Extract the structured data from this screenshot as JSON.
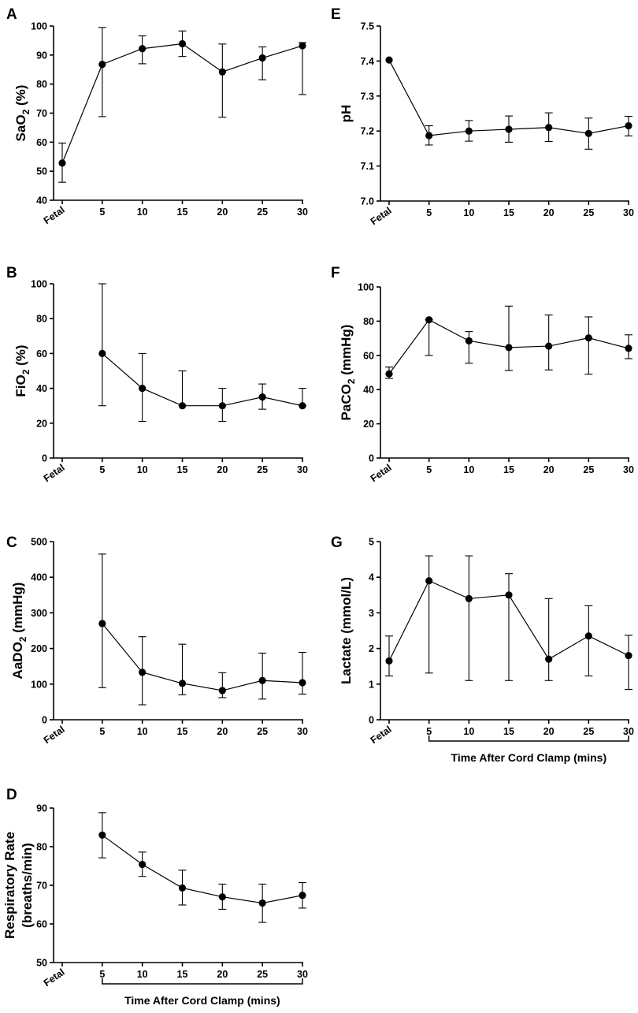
{
  "chart_data": [
    {
      "panel": "A",
      "type": "line",
      "categories": [
        "Fetal",
        "5",
        "10",
        "15",
        "20",
        "25",
        "30"
      ],
      "ylabel": "SaO",
      "ylabel_sub": "2",
      "ylabel_suffix": " (%)",
      "ylim": [
        40,
        100
      ],
      "yticks": [
        40,
        50,
        60,
        70,
        80,
        90,
        100
      ],
      "values": [
        52.8,
        86.8,
        92.2,
        93.9,
        84.2,
        89.0,
        93.2
      ],
      "err_low": [
        46.2,
        68.8,
        87.0,
        89.5,
        68.6,
        81.5,
        76.4
      ],
      "err_high": [
        59.7,
        99.5,
        96.6,
        98.3,
        93.8,
        92.8,
        94.3
      ],
      "bracket_label": ""
    },
    {
      "panel": "B",
      "type": "line",
      "categories": [
        "Fetal",
        "5",
        "10",
        "15",
        "20",
        "25",
        "30"
      ],
      "ylabel": "FiO",
      "ylabel_sub": "2",
      "ylabel_suffix": " (%)",
      "ylim": [
        0,
        100
      ],
      "yticks": [
        0,
        20,
        40,
        60,
        80,
        100
      ],
      "values": [
        null,
        60,
        40,
        30,
        30,
        35,
        30
      ],
      "err_low": [
        null,
        30,
        21,
        30,
        21,
        28,
        30
      ],
      "err_high": [
        null,
        100,
        60,
        50,
        40,
        42.5,
        40
      ],
      "bracket_label": ""
    },
    {
      "panel": "C",
      "type": "line",
      "categories": [
        "Fetal",
        "5",
        "10",
        "15",
        "20",
        "25",
        "30"
      ],
      "ylabel": "AaDO",
      "ylabel_sub": "2",
      "ylabel_suffix": " (mmHg)",
      "ylim": [
        0,
        500
      ],
      "yticks": [
        0,
        100,
        200,
        300,
        400,
        500
      ],
      "values": [
        null,
        270,
        133,
        102,
        82,
        110,
        104
      ],
      "err_low": [
        null,
        90,
        42,
        70,
        62,
        58,
        72
      ],
      "err_high": [
        null,
        465,
        233,
        212,
        132,
        187,
        189
      ],
      "bracket_label": ""
    },
    {
      "panel": "D",
      "type": "line",
      "categories": [
        "Fetal",
        "5",
        "10",
        "15",
        "20",
        "25",
        "30"
      ],
      "ylabel": "Respiratory Rate",
      "ylabel2": "(breaths/min)",
      "ylim": [
        50,
        90
      ],
      "yticks": [
        50,
        60,
        70,
        80,
        90
      ],
      "values": [
        null,
        83.0,
        75.4,
        69.3,
        67.0,
        65.4,
        67.4
      ],
      "err_low": [
        null,
        77.1,
        72.3,
        64.9,
        63.8,
        60.4,
        64.1
      ],
      "err_high": [
        null,
        88.8,
        78.6,
        73.9,
        70.3,
        70.3,
        70.7
      ],
      "bracket_label": "Time After Cord Clamp (mins)"
    },
    {
      "panel": "E",
      "type": "line",
      "categories": [
        "Fetal",
        "5",
        "10",
        "15",
        "20",
        "25",
        "30"
      ],
      "ylabel": "pH",
      "ylim": [
        7.0,
        7.5
      ],
      "yticks": [
        "7.0",
        "7.1",
        "7.2",
        "7.3",
        "7.4",
        "7.5"
      ],
      "values": [
        7.403,
        7.187,
        7.2,
        7.205,
        7.21,
        7.193,
        7.215
      ],
      "err_low": [
        null,
        7.16,
        7.171,
        7.168,
        7.17,
        7.148,
        7.186
      ],
      "err_high": [
        null,
        7.215,
        7.23,
        7.243,
        7.252,
        7.237,
        7.242
      ],
      "bracket_label": ""
    },
    {
      "panel": "F",
      "type": "line",
      "categories": [
        "Fetal",
        "5",
        "10",
        "15",
        "20",
        "25",
        "30"
      ],
      "ylabel": "PaCO",
      "ylabel_sub": "2",
      "ylabel_suffix": " (mmHg)",
      "ylim": [
        0,
        100
      ],
      "yticks": [
        0,
        20,
        40,
        60,
        80,
        100
      ],
      "values": [
        49.2,
        80.8,
        68.5,
        64.6,
        65.4,
        70.2,
        64.1
      ],
      "err_low": [
        46.5,
        60.0,
        55.4,
        51.2,
        51.5,
        49.0,
        58.1
      ],
      "err_high": [
        53.2,
        80.8,
        73.9,
        88.8,
        83.6,
        82.5,
        72.0
      ],
      "bracket_label": ""
    },
    {
      "panel": "G",
      "type": "line",
      "categories": [
        "Fetal",
        "5",
        "10",
        "15",
        "20",
        "25",
        "30"
      ],
      "ylabel": "Lactate (mmol/L)",
      "ylim": [
        0,
        5
      ],
      "yticks": [
        0,
        1,
        2,
        3,
        4,
        5
      ],
      "values": [
        1.65,
        3.9,
        3.4,
        3.5,
        1.7,
        2.35,
        1.8
      ],
      "err_low": [
        1.23,
        1.31,
        1.1,
        1.1,
        1.1,
        1.23,
        0.85
      ],
      "err_high": [
        2.35,
        4.6,
        4.6,
        4.1,
        3.4,
        3.2,
        2.37
      ],
      "bracket_label": "Time After Cord Clamp (mins)"
    }
  ]
}
